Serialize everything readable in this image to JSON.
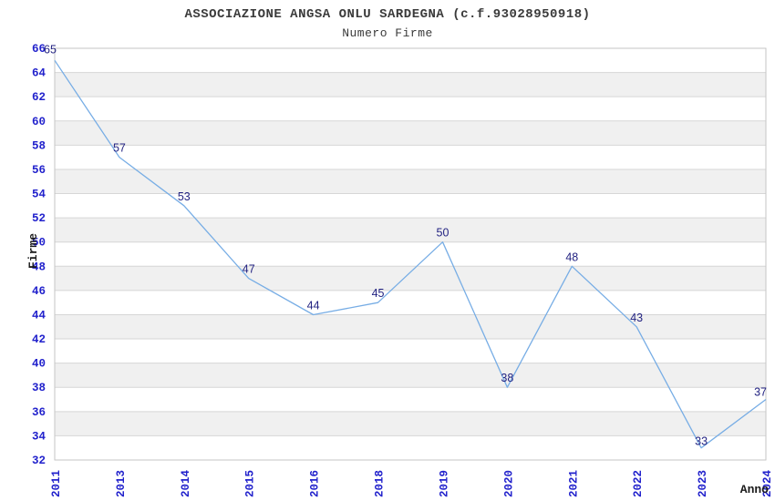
{
  "header": {
    "title": "ASSOCIAZIONE ANGSA ONLU SARDEGNA (c.f.93028950918)",
    "subtitle": "Numero Firme"
  },
  "chart_data": {
    "type": "line",
    "title": "ASSOCIAZIONE ANGSA ONLU SARDEGNA (c.f.93028950918)",
    "subtitle": "Numero Firme",
    "xlabel": "Anno",
    "ylabel": "Firme",
    "categories": [
      "2011",
      "2013",
      "2014",
      "2015",
      "2016",
      "2018",
      "2019",
      "2020",
      "2021",
      "2022",
      "2023",
      "2024"
    ],
    "values": [
      65,
      57,
      53,
      47,
      44,
      45,
      50,
      38,
      48,
      43,
      33,
      37
    ],
    "ylim": [
      32,
      66
    ],
    "ytick_step": 2,
    "grid": "horizontal-with-alternating-bands",
    "legend": "none",
    "colors": {
      "line": "#77ade5",
      "tick_label": "#2222cc",
      "value_label": "#232382",
      "band_gray": "#f0f0f0",
      "band_white": "#ffffff",
      "grid_line": "#d6d6d6",
      "plot_border": "#c6c6c6"
    }
  }
}
